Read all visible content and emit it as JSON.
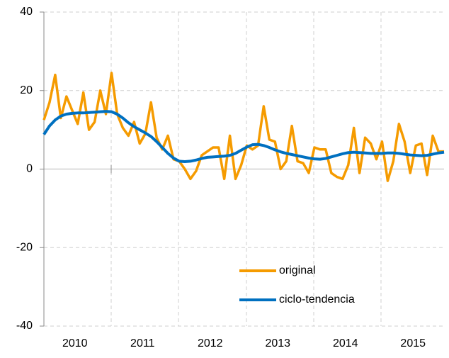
{
  "chart_data": {
    "type": "line",
    "categories": [
      null,
      null,
      null,
      null,
      null,
      null,
      "2010",
      null,
      null,
      null,
      null,
      null,
      null,
      null,
      null,
      null,
      null,
      null,
      "2011",
      null,
      null,
      null,
      null,
      null,
      null,
      null,
      null,
      null,
      null,
      null,
      "2012",
      null,
      null,
      null,
      null,
      null,
      null,
      null,
      null,
      null,
      null,
      null,
      "2013",
      null,
      null,
      null,
      null,
      null,
      null,
      null,
      null,
      null,
      null,
      null,
      "2014",
      null,
      null,
      null,
      null,
      null,
      null,
      null,
      null,
      null,
      null,
      null,
      "2015",
      null,
      null,
      null,
      null,
      null
    ],
    "series": [
      {
        "name": "original",
        "color": "#f59b00",
        "values": [
          12.5,
          17,
          24,
          13,
          18.5,
          15,
          11.5,
          19.5,
          10,
          12,
          20,
          14,
          24.5,
          14,
          10.5,
          8.5,
          12,
          6.5,
          9,
          17,
          8,
          5,
          8.5,
          2.5,
          2,
          0,
          -2.5,
          -0.5,
          3.5,
          4.5,
          5.5,
          5.5,
          -2.5,
          8.5,
          -2.5,
          1,
          6,
          5,
          6,
          16,
          7.5,
          7,
          0,
          2,
          11,
          2,
          1.5,
          -1,
          5.5,
          5,
          5,
          -1,
          -2,
          -2.5,
          1,
          10.5,
          -1,
          8,
          6.5,
          2.5,
          7,
          -3,
          2,
          11.5,
          7,
          -1,
          6,
          6.5,
          -1.5,
          8.5,
          4.5,
          4.5
        ]
      },
      {
        "name": "ciclo-tendencia",
        "color": "#0070c0",
        "values": [
          8.8,
          11,
          12.5,
          13.5,
          14,
          14.2,
          14.3,
          14.3,
          14.4,
          14.5,
          14.6,
          14.7,
          14.6,
          14,
          13,
          11.8,
          10.8,
          10,
          9.2,
          8.3,
          7,
          5.5,
          4,
          2.8,
          2,
          1.9,
          2,
          2.3,
          2.7,
          3,
          3.1,
          3.2,
          3.3,
          3.5,
          4,
          4.8,
          5.6,
          6.2,
          6.3,
          6,
          5.5,
          4.9,
          4.4,
          4,
          3.7,
          3.4,
          3.1,
          2.8,
          2.6,
          2.5,
          2.7,
          3.1,
          3.5,
          3.9,
          4.2,
          4.3,
          4.2,
          4.1,
          4,
          4,
          4,
          4.1,
          4.1,
          4,
          3.8,
          3.6,
          3.5,
          3.4,
          3.5,
          3.8,
          4.1,
          4.3
        ]
      }
    ],
    "ylim": [
      -40,
      40
    ],
    "yticks": [
      -40,
      -20,
      0,
      20,
      40
    ],
    "grid": true,
    "legend": "lower right"
  }
}
